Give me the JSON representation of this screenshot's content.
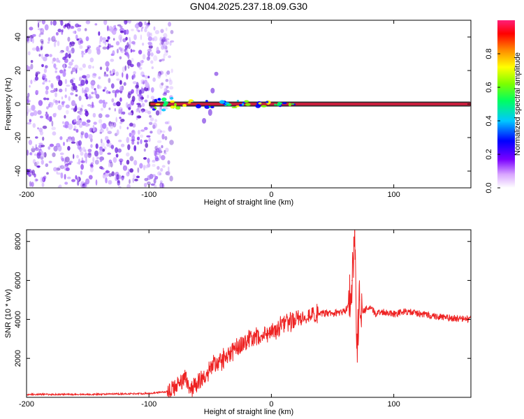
{
  "title": "GN04.2025.237.18.09.G30",
  "colors": {
    "snr_line": "#ee2222",
    "ridge_band": "#c81e3c",
    "speckle": "#6a20e0"
  },
  "chart_data": [
    {
      "type": "heatmap",
      "title": "GN04.2025.237.18.09.G30",
      "xlabel": "Height of straight line (km)",
      "ylabel": "Frequency (Hz)",
      "xlim": [
        -200,
        163
      ],
      "ylim": [
        -50,
        50
      ],
      "xticks": [
        -200,
        -100,
        0,
        100
      ],
      "yticks": [
        -40,
        -20,
        0,
        20,
        40
      ],
      "colorbar": {
        "label": "Normalized spectral amplitude",
        "range": [
          0,
          1
        ],
        "ticks": [
          0.0,
          0.2,
          0.4,
          0.6,
          0.8
        ]
      },
      "features": {
        "noise_region_km": [
          -200,
          -85
        ],
        "ridge_start_km": -100,
        "ridge_frequency_hz": 0
      }
    },
    {
      "type": "line",
      "xlabel": "Height of straight line (km)",
      "ylabel": "SNR (10 * v/v)",
      "xlim": [
        -200,
        163
      ],
      "ylim": [
        0,
        8600
      ],
      "xticks": [
        -200,
        -100,
        0,
        100
      ],
      "yticks": [
        2000,
        4000,
        6000,
        8000
      ],
      "series": [
        {
          "name": "SNR",
          "x": [
            -200,
            -150,
            -100,
            -85,
            -75,
            -70,
            -65,
            -55,
            -50,
            -40,
            -30,
            -20,
            -10,
            0,
            10,
            20,
            30,
            40,
            50,
            60,
            63,
            66,
            68,
            70,
            72,
            75,
            80,
            85,
            90,
            100,
            110,
            120,
            130,
            140,
            150,
            163
          ],
          "y": [
            150,
            150,
            200,
            300,
            700,
            900,
            500,
            1000,
            1600,
            1900,
            2500,
            2900,
            3100,
            3400,
            3700,
            3950,
            4200,
            4300,
            4300,
            4400,
            4800,
            6000,
            8500,
            2500,
            5000,
            4400,
            4600,
            4300,
            4400,
            4300,
            4400,
            4300,
            4200,
            4100,
            4050,
            4000
          ]
        }
      ]
    }
  ]
}
